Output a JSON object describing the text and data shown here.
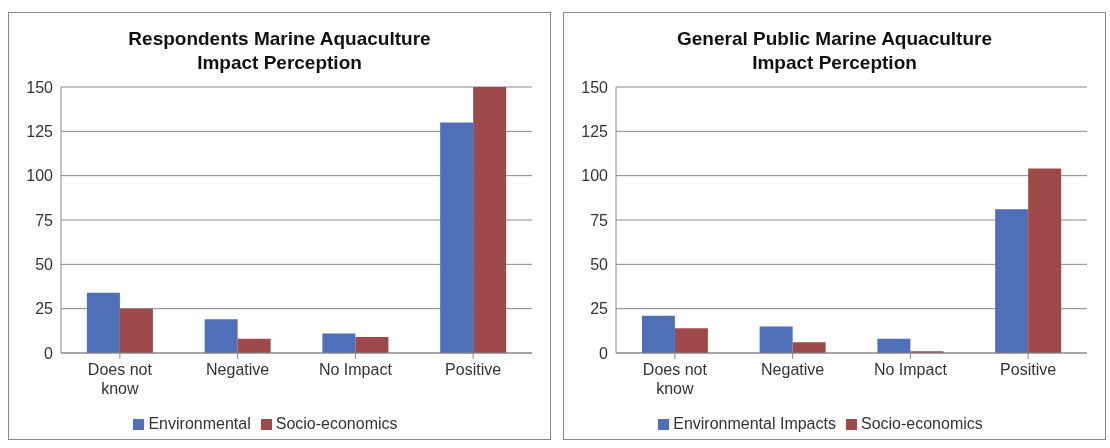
{
  "chart_data": [
    {
      "type": "bar",
      "title": "Respondents Marine Aquaculture Impact  Perception",
      "categories": [
        "Does not know",
        "Negative",
        "No Impact",
        "Positive"
      ],
      "series": [
        {
          "name": "Environmental",
          "color": "#4f6fb8",
          "values": [
            34,
            19,
            11,
            130
          ]
        },
        {
          "name": "Socio-economics",
          "color": "#9e4a4a",
          "values": [
            25,
            8,
            9,
            150
          ]
        }
      ],
      "ylim": [
        0,
        150
      ],
      "yticks": [
        0,
        25,
        50,
        75,
        100,
        125,
        150
      ],
      "grid": "y",
      "legend": "bottom"
    },
    {
      "type": "bar",
      "title": "General Public Marine Aquaculture Impact Perception",
      "categories": [
        "Does not know",
        "Negative",
        "No Impact",
        "Positive"
      ],
      "series": [
        {
          "name": "Environmental Impacts",
          "color": "#4f6fb8",
          "values": [
            21,
            15,
            8,
            81
          ]
        },
        {
          "name": "Socio-economics",
          "color": "#9e4a4a",
          "values": [
            14,
            6,
            1,
            104
          ]
        }
      ],
      "ylim": [
        0,
        150
      ],
      "yticks": [
        0,
        25,
        50,
        75,
        100,
        125,
        150
      ],
      "grid": "y",
      "legend": "bottom"
    }
  ]
}
